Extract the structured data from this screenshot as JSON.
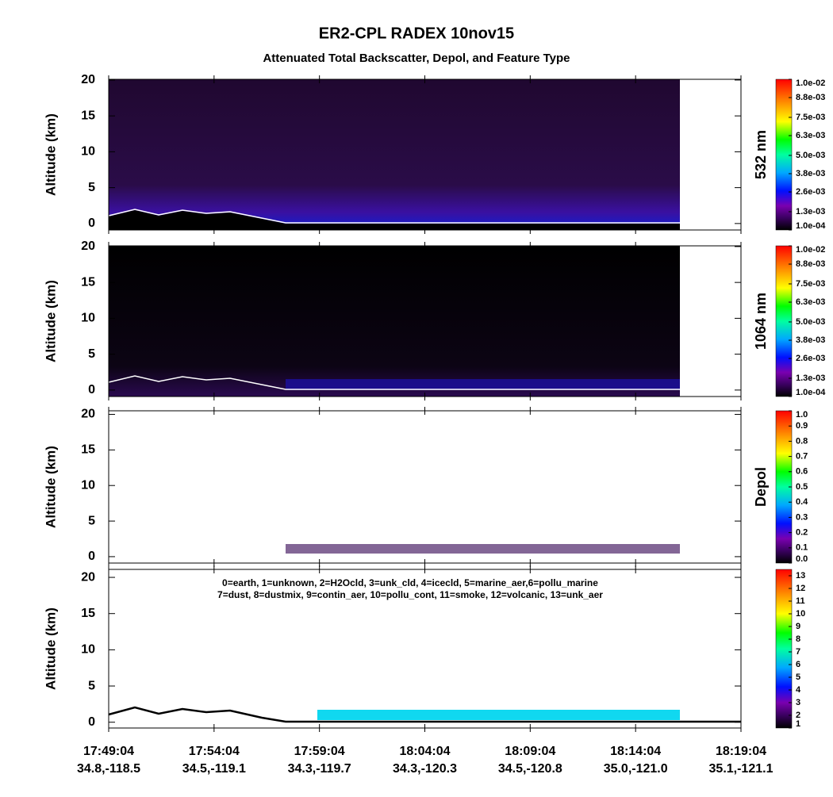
{
  "title": "ER2-CPL RADEX 10nov15",
  "subtitle": "Attenuated Total Backscatter, Depol, and Feature Type",
  "chart_data": [
    {
      "type": "heatmap",
      "ylabel": "Altitude (km)",
      "ylim": [
        -0.9,
        20.1
      ],
      "yticks": [
        0,
        5,
        10,
        15,
        20
      ],
      "colorbar_label": "532 nm",
      "clim": [
        0.0001,
        0.01
      ],
      "cticks": [
        {
          "value": 0.0001,
          "label": "1.0e-04"
        },
        {
          "value": 0.0013,
          "label": "1.3e-03"
        },
        {
          "value": 0.0026,
          "label": "2.6e-03"
        },
        {
          "value": 0.0038,
          "label": "3.8e-03"
        },
        {
          "value": 0.005,
          "label": "5.0e-03"
        },
        {
          "value": 0.0063,
          "label": "6.3e-03"
        },
        {
          "value": 0.0075,
          "label": "7.5e-03"
        },
        {
          "value": 0.0088,
          "label": "8.8e-03"
        },
        {
          "value": 0.01,
          "label": "1.0e-02"
        }
      ]
    },
    {
      "type": "heatmap",
      "ylabel": "Altitude (km)",
      "ylim": [
        -0.9,
        20.1
      ],
      "yticks": [
        0,
        5,
        10,
        15,
        20
      ],
      "colorbar_label": "1064 nm",
      "clim": [
        0.0001,
        0.01
      ],
      "cticks": [
        {
          "value": 0.0001,
          "label": "1.0e-04"
        },
        {
          "value": 0.0013,
          "label": "1.3e-03"
        },
        {
          "value": 0.0026,
          "label": "2.6e-03"
        },
        {
          "value": 0.0038,
          "label": "3.8e-03"
        },
        {
          "value": 0.005,
          "label": "5.0e-03"
        },
        {
          "value": 0.0063,
          "label": "6.3e-03"
        },
        {
          "value": 0.0075,
          "label": "7.5e-03"
        },
        {
          "value": 0.0088,
          "label": "8.8e-03"
        },
        {
          "value": 0.01,
          "label": "1.0e-02"
        }
      ]
    },
    {
      "type": "heatmap",
      "ylabel": "Altitude (km)",
      "ylim": [
        -0.9,
        20.5
      ],
      "yticks": [
        0,
        5,
        10,
        15,
        20
      ],
      "colorbar_label": "Depol",
      "clim": [
        0,
        1
      ],
      "cticks": [
        {
          "value": 0,
          "label": "0.0"
        },
        0.1,
        0.2,
        0.3,
        0.4,
        0.5,
        0.6,
        0.7,
        0.8,
        0.9,
        {
          "value": 1,
          "label": "1.0"
        }
      ]
    },
    {
      "type": "heatmap",
      "ylabel": "Altitude (km)",
      "ylim": [
        -0.8,
        21.1
      ],
      "yticks": [
        0,
        5,
        10,
        15,
        20
      ],
      "clim": [
        1,
        13.5
      ],
      "cticks": [
        1,
        2,
        3,
        4,
        5,
        6,
        7,
        8,
        9,
        10,
        11,
        12,
        13
      ],
      "annotations": [
        "0=earth, 1=unknown, 2=H2Ocld, 3=unk_cld, 4=icecld, 5=marine_aer,6=pollu_marine",
        "7=dust, 8=dustmix, 9=contin_aer, 10=pollu_cont, 11=smoke, 12=volcanic, 13=unk_aer"
      ],
      "categories": [
        "17:49:04",
        "17:54:04",
        "17:59:04",
        "18:04:04",
        "18:09:04",
        "18:14:04",
        "18:19:04"
      ],
      "sublabels": [
        "34.8,-118.5",
        "34.5,-119.1",
        "34.3,-119.7",
        "34.3,-120.3",
        "34.5,-120.8",
        "35.0,-121.0",
        "35.1,-121.1"
      ]
    }
  ]
}
